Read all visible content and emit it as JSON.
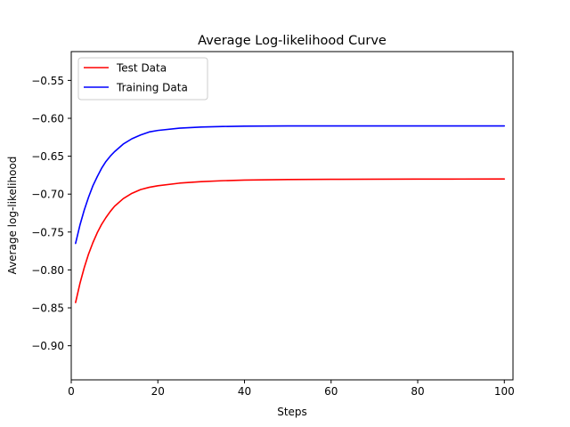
{
  "chart_data": {
    "type": "line",
    "title": "Average Log-likelihood Curve",
    "xlabel": "Steps",
    "ylabel": "Average log-likelihood",
    "xlim": [
      0,
      102
    ],
    "ylim": [
      -0.945,
      -0.512
    ],
    "xticks": [
      0,
      20,
      40,
      60,
      80,
      100
    ],
    "xtick_labels": [
      "0",
      "20",
      "40",
      "60",
      "80",
      "100"
    ],
    "yticks": [
      -0.9,
      -0.85,
      -0.8,
      -0.75,
      -0.7,
      -0.65,
      -0.6,
      -0.55
    ],
    "ytick_labels": [
      "−0.90",
      "−0.85",
      "−0.80",
      "−0.75",
      "−0.70",
      "−0.65",
      "−0.60",
      "−0.55"
    ],
    "grid": false,
    "legend_position": "top-left",
    "series": [
      {
        "name": "Test Data",
        "color": "#ff0000",
        "x": [
          1,
          2,
          3,
          4,
          5,
          6,
          7,
          8,
          9,
          10,
          12,
          14,
          16,
          18,
          20,
          25,
          30,
          35,
          40,
          50,
          60,
          70,
          80,
          90,
          100
        ],
        "y": [
          -0.843,
          -0.818,
          -0.797,
          -0.779,
          -0.764,
          -0.751,
          -0.74,
          -0.731,
          -0.723,
          -0.716,
          -0.706,
          -0.699,
          -0.694,
          -0.691,
          -0.689,
          -0.6855,
          -0.6835,
          -0.6823,
          -0.6815,
          -0.6808,
          -0.6805,
          -0.6803,
          -0.6802,
          -0.6801,
          -0.68
        ]
      },
      {
        "name": "Training Data",
        "color": "#0000ff",
        "x": [
          1,
          2,
          3,
          4,
          5,
          6,
          7,
          8,
          9,
          10,
          12,
          14,
          16,
          18,
          20,
          25,
          30,
          35,
          40,
          50,
          60,
          70,
          80,
          90,
          100
        ],
        "y": [
          -0.765,
          -0.741,
          -0.721,
          -0.704,
          -0.689,
          -0.677,
          -0.666,
          -0.657,
          -0.65,
          -0.644,
          -0.634,
          -0.627,
          -0.622,
          -0.618,
          -0.616,
          -0.613,
          -0.6115,
          -0.6108,
          -0.6104,
          -0.6101,
          -0.61,
          -0.61,
          -0.61,
          -0.61,
          -0.61
        ]
      }
    ]
  }
}
